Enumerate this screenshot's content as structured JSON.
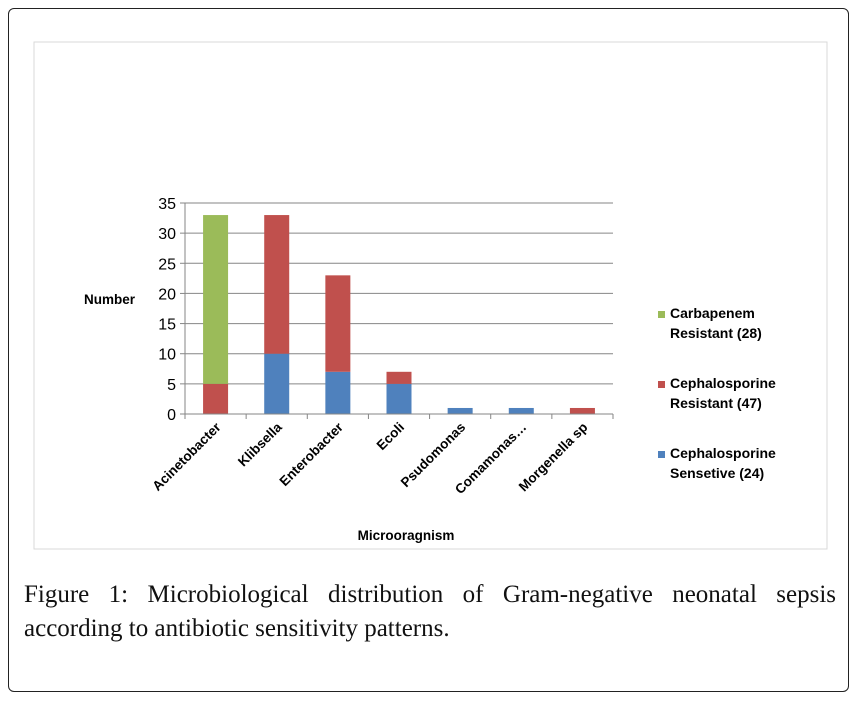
{
  "caption": {
    "label": "Figure 1:",
    "text": "Microbiological distribution of Gram-negative neonatal sepsis according to antibiotic sensitivity patterns."
  },
  "chart_data": {
    "type": "bar",
    "stacked": true,
    "categories": [
      "Acinetobacter",
      "Klibsella",
      "Enterobacter",
      "Ecoli",
      "Psudomonas",
      "Comamonas…",
      "Morgenella sp"
    ],
    "series": [
      {
        "name_line1": "Cephalosporine",
        "name_line2": "Sensetive (24)",
        "color": "#4f81bd",
        "values": [
          0,
          10,
          7,
          5,
          1,
          1,
          0
        ]
      },
      {
        "name_line1": "Cephalosporine",
        "name_line2": "Resistant (47)",
        "color": "#c0504d",
        "values": [
          5,
          23,
          16,
          2,
          0,
          0,
          1
        ]
      },
      {
        "name_line1": "Carbapenem",
        "name_line2": "Resistant (28)",
        "color": "#9bbb59",
        "values": [
          28,
          0,
          0,
          0,
          0,
          0,
          0
        ]
      }
    ],
    "xlabel": "Microoragnism",
    "ylabel": "Number",
    "ylim": [
      0,
      35
    ],
    "yticks": [
      0,
      5,
      10,
      15,
      20,
      25,
      30,
      35
    ],
    "grid": true,
    "legend_position": "right",
    "legend_order": [
      2,
      1,
      0
    ]
  }
}
